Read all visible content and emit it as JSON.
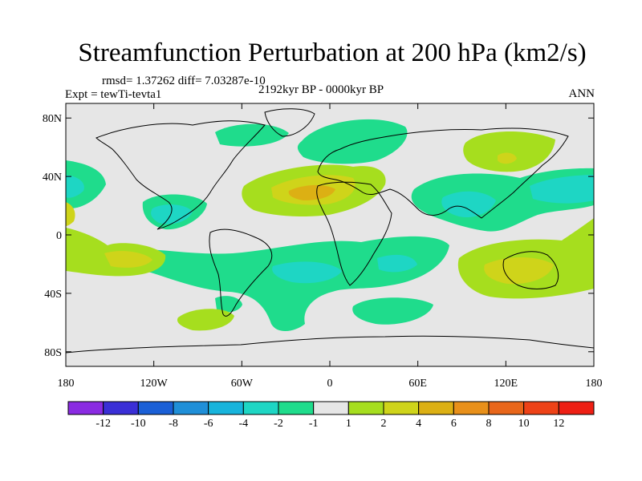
{
  "title": "Streamfunction Perturbation at 200 hPa (km2/s)",
  "stats": {
    "rmsd_label": "rmsd= 1.37262 diff= 7.03287e-10"
  },
  "experiment": {
    "label": "Expt = tewTi-tevta1"
  },
  "period": {
    "label": "2192kyr BP - 0000kyr BP"
  },
  "season": {
    "label": "ANN"
  },
  "axes": {
    "lat_ticks": [
      "80N",
      "40N",
      "0",
      "40S",
      "80S"
    ],
    "lon_ticks": [
      "180",
      "120W",
      "60W",
      "0",
      "60E",
      "120E",
      "180"
    ]
  },
  "colorbar": {
    "labels": [
      "-12",
      "-10",
      "-8",
      "-6",
      "-4",
      "-2",
      "-1",
      "1",
      "2",
      "4",
      "6",
      "8",
      "10",
      "12"
    ],
    "colors": [
      "#8a2be2",
      "#3a2fd6",
      "#1a5fd6",
      "#1f8fd8",
      "#17b4dc",
      "#1ed6c4",
      "#1fdc8c",
      "#e6e6e6",
      "#a6de1e",
      "#cfd41a",
      "#dcb014",
      "#e8901a",
      "#e8661a",
      "#ee4217",
      "#ee1f14"
    ]
  },
  "chart_data": {
    "type": "map",
    "title": "Streamfunction Perturbation at 200 hPa (km2/s)",
    "projection": "cylindrical equidistant",
    "lon_range": [
      -180,
      180
    ],
    "lat_range": [
      -90,
      90
    ],
    "levels": [
      -12,
      -10,
      -8,
      -6,
      -4,
      -2,
      -1,
      1,
      2,
      4,
      6,
      8,
      10,
      12
    ],
    "features": [
      {
        "name": "N-Atlantic/Africa high",
        "lon": -5,
        "lat": 30,
        "value": 5
      },
      {
        "name": "E-Asia/W-Pacific low",
        "lon": 140,
        "lat": 30,
        "value": -4
      },
      {
        "name": "Australia high",
        "lon": 135,
        "lat": -25,
        "value": 2
      },
      {
        "name": "NE-Pacific high",
        "lon": 125,
        "lat": 55,
        "value": 3
      },
      {
        "name": "Pacific high",
        "lon": -150,
        "lat": -15,
        "value": 3
      },
      {
        "name": "S-Atlantic low",
        "lon": -10,
        "lat": -25,
        "value": -2
      },
      {
        "name": "Greenland/Scandinavia low",
        "lon": 10,
        "lat": 65,
        "value": -2
      },
      {
        "name": "E-Pacific low",
        "lon": -110,
        "lat": 15,
        "value": -3
      }
    ]
  }
}
